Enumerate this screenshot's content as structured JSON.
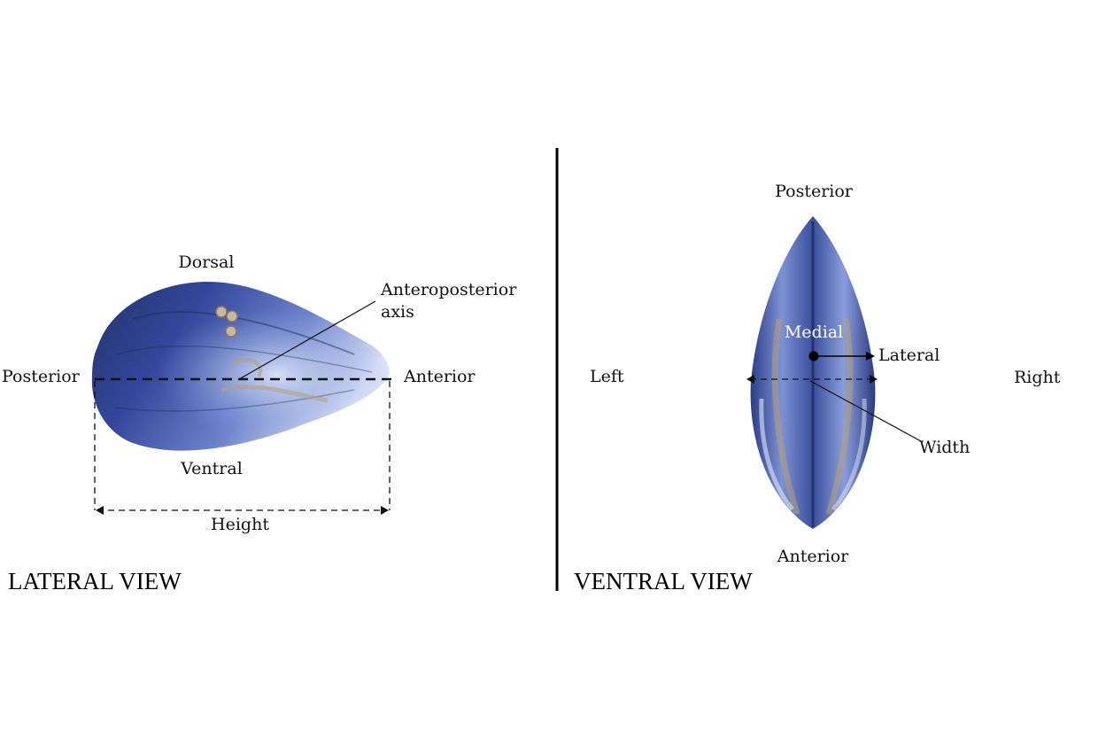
{
  "lateral_view": {
    "title": "LATERAL VIEW",
    "labels": {
      "dorsal": "Dorsal",
      "ventral": "Ventral",
      "posterior": "Posterior",
      "anterior": "Anterior",
      "axis_line1": "Anteroposterior",
      "axis_line2": "axis",
      "height": "Height"
    }
  },
  "ventral_view": {
    "title": "VENTRAL VIEW",
    "labels": {
      "posterior": "Posterior",
      "anterior": "Anterior",
      "left": "Left",
      "right": "Right",
      "medial": "Medial",
      "lateral": "Lateral",
      "width": "Width"
    }
  },
  "colors": {
    "shell_dark": "#1c2a5e",
    "shell_mid": "#3f56a6",
    "shell_light": "#9fb2e2",
    "shell_tan": "#b8a07a",
    "line": "#111111"
  },
  "icons": {
    "shell_lateral": "mussel-shell-side-illustration",
    "shell_ventral": "mussel-shell-ventral-illustration"
  }
}
